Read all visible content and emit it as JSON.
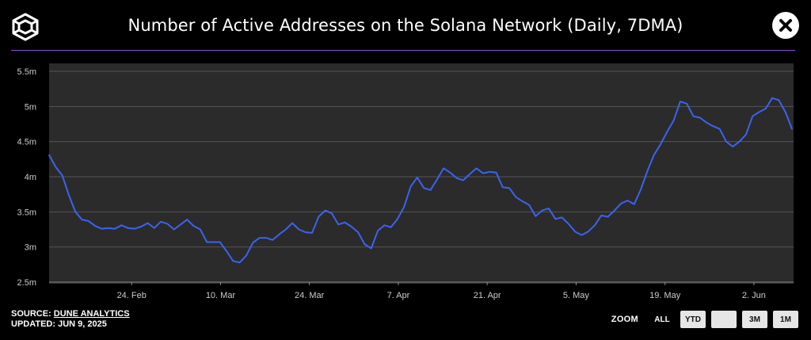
{
  "header": {
    "title": "Number of Active Addresses on the Solana Network (Daily, 7DMA)",
    "logo_icon": "cube-logo-icon",
    "close_icon": "close-icon"
  },
  "colors": {
    "background": "#000000",
    "plot_background": "#2b2b2b",
    "line": "#3b63ee",
    "divider": "#8a4fd8",
    "grid": "#555555"
  },
  "footer": {
    "source_prefix": "SOURCE: ",
    "source_name": "DUNE ANALYTICS",
    "updated": "UPDATED: JUN 9, 2025"
  },
  "zoom": {
    "label": "ZOOM",
    "buttons": [
      {
        "label": "ALL",
        "active": true
      },
      {
        "label": "YTD",
        "active": false
      },
      {
        "label": "",
        "active": false
      },
      {
        "label": "3M",
        "active": false
      },
      {
        "label": "1M",
        "active": false
      }
    ]
  },
  "chart_data": {
    "type": "line",
    "title": "Number of Active Addresses on the Solana Network (Daily, 7DMA)",
    "xlabel": "",
    "ylabel": "",
    "grid": true,
    "x_start": "2025-02-11",
    "x_end": "2025-06-08",
    "x_ticks": [
      {
        "label": "24. Feb",
        "date": "2025-02-24"
      },
      {
        "label": "10. Mar",
        "date": "2025-03-10"
      },
      {
        "label": "24. Mar",
        "date": "2025-03-24"
      },
      {
        "label": "7. Apr",
        "date": "2025-04-07"
      },
      {
        "label": "21. Apr",
        "date": "2025-04-21"
      },
      {
        "label": "5. May",
        "date": "2025-05-05"
      },
      {
        "label": "19. May",
        "date": "2025-05-19"
      },
      {
        "label": "2. Jun",
        "date": "2025-06-02"
      }
    ],
    "y_ticks": [
      {
        "label": "2.5m",
        "value": 2.5
      },
      {
        "label": "3m",
        "value": 3.0
      },
      {
        "label": "3.5m",
        "value": 3.5
      },
      {
        "label": "4m",
        "value": 4.0
      },
      {
        "label": "4.5m",
        "value": 4.5
      },
      {
        "label": "5m",
        "value": 5.0
      },
      {
        "label": "5.5m",
        "value": 5.5
      }
    ],
    "ylim": [
      2.5,
      5.5
    ],
    "y_unit": "millions",
    "series": [
      {
        "values": [
          4.31,
          4.14,
          4.02,
          3.74,
          3.5,
          3.39,
          3.37,
          3.3,
          3.26,
          3.27,
          3.26,
          3.31,
          3.27,
          3.26,
          3.29,
          3.34,
          3.27,
          3.36,
          3.33,
          3.25,
          3.32,
          3.39,
          3.3,
          3.25,
          3.07,
          3.07,
          3.07,
          2.94,
          2.8,
          2.78,
          2.88,
          3.06,
          3.13,
          3.13,
          3.1,
          3.18,
          3.25,
          3.34,
          3.25,
          3.21,
          3.2,
          3.43,
          3.52,
          3.48,
          3.32,
          3.35,
          3.29,
          3.21,
          3.04,
          2.98,
          3.23,
          3.31,
          3.28,
          3.4,
          3.57,
          3.86,
          3.99,
          3.84,
          3.81,
          3.96,
          4.12,
          4.06,
          3.98,
          3.95,
          4.04,
          4.12,
          4.05,
          4.07,
          4.06,
          3.85,
          3.84,
          3.71,
          3.65,
          3.6,
          3.44,
          3.52,
          3.55,
          3.4,
          3.42,
          3.33,
          3.22,
          3.17,
          3.22,
          3.31,
          3.45,
          3.43,
          3.52,
          3.62,
          3.66,
          3.61,
          3.82,
          4.08,
          4.31,
          4.46,
          4.64,
          4.8,
          5.07,
          5.04,
          4.86,
          4.84,
          4.77,
          4.72,
          4.68,
          4.5,
          4.43,
          4.5,
          4.6,
          4.86,
          4.92,
          4.97,
          5.12,
          5.09,
          4.92,
          4.68
        ]
      }
    ]
  }
}
